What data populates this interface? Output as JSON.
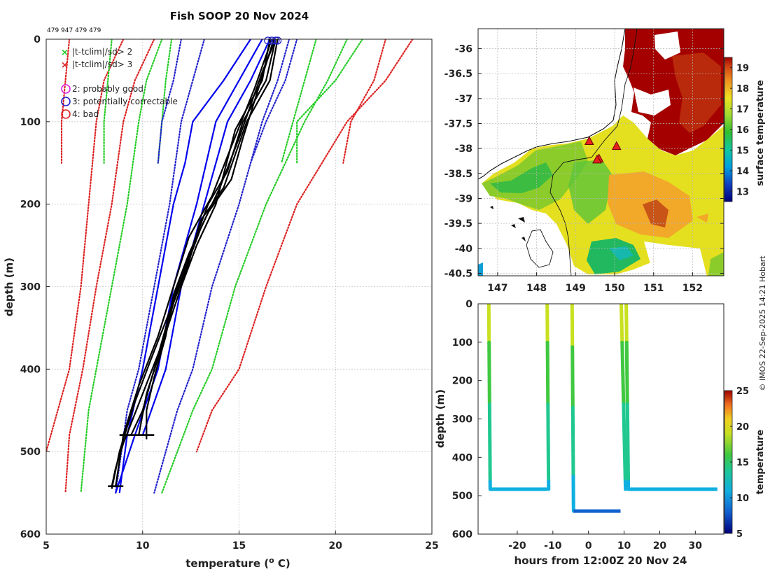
{
  "chart_data": [
    {
      "type": "line",
      "title": "Fish SOOP 20 Nov 2024",
      "subtitle": "479 947 479 479",
      "xlabel": "temperature (o C)",
      "xlabel_main": "temperature (",
      "xlabel_sup": "o",
      "xlabel_end": " C)",
      "ylabel": "depth (m)",
      "xlim": [
        5,
        25
      ],
      "ylim": [
        600,
        0
      ],
      "xticks": [
        5,
        10,
        15,
        20,
        25
      ],
      "yticks": [
        0,
        100,
        200,
        300,
        400,
        500,
        600
      ],
      "grid": true,
      "legend": [
        {
          "marker": "x",
          "color": "#22cc22",
          "label": "|t-tclim|/sd> 2"
        },
        {
          "marker": "x",
          "color": "#dd2222",
          "label": "|t-tclim|/sd> 3"
        },
        {
          "marker": "o",
          "color": "#dd22dd",
          "label": "2: probably good"
        },
        {
          "marker": "o",
          "color": "#2222cc",
          "label": "3: potentially correctable"
        },
        {
          "marker": "o",
          "color": "#dd2222",
          "label": "4: bad"
        }
      ],
      "climatology_series": [
        {
          "name": "clim -3sd a",
          "color": "#dd2222",
          "style": "dotted",
          "points": [
            [
              6.2,
              0
            ],
            [
              6.0,
              50
            ],
            [
              5.8,
              100
            ],
            [
              5.8,
              150
            ]
          ]
        },
        {
          "name": "clim -3sd b",
          "color": "#dd2222",
          "style": "dotted",
          "points": [
            [
              9.0,
              0
            ],
            [
              8.0,
              50
            ],
            [
              7.6,
              100
            ],
            [
              7.2,
              200
            ],
            [
              6.8,
              300
            ],
            [
              6.2,
              400
            ],
            [
              5.6,
              450
            ],
            [
              5.0,
              500
            ]
          ]
        },
        {
          "name": "clim -3sd c",
          "color": "#dd2222",
          "style": "dotted",
          "points": [
            [
              10.6,
              0
            ],
            [
              9.6,
              50
            ],
            [
              9.0,
              100
            ],
            [
              8.4,
              200
            ],
            [
              7.6,
              300
            ],
            [
              6.9,
              400
            ],
            [
              6.2,
              480
            ],
            [
              6.0,
              550
            ]
          ]
        },
        {
          "name": "clim -2sd a",
          "color": "#22cc22",
          "style": "dotted",
          "points": [
            [
              8.4,
              0
            ],
            [
              8.2,
              50
            ],
            [
              8.0,
              100
            ],
            [
              8.0,
              150
            ]
          ]
        },
        {
          "name": "clim -2sd b",
          "color": "#22cc22",
          "style": "dotted",
          "points": [
            [
              11.0,
              0
            ],
            [
              10.2,
              50
            ],
            [
              9.8,
              100
            ],
            [
              9.2,
              200
            ],
            [
              8.4,
              300
            ],
            [
              7.6,
              400
            ],
            [
              7.2,
              450
            ],
            [
              6.8,
              550
            ]
          ]
        },
        {
          "name": "clim -2sd c",
          "color": "#22cc22",
          "style": "dotted",
          "points": [
            [
              11.5,
              0
            ],
            [
              11.2,
              50
            ],
            [
              11.0,
              100
            ],
            [
              10.8,
              150
            ]
          ]
        },
        {
          "name": "clim -1sd a",
          "color": "#2222cc",
          "style": "dotted",
          "points": [
            [
              12.0,
              0
            ],
            [
              11.6,
              50
            ],
            [
              11.0,
              100
            ],
            [
              10.8,
              150
            ]
          ]
        },
        {
          "name": "clim -1sd b",
          "color": "#2222cc",
          "style": "dotted",
          "points": [
            [
              13.2,
              0
            ],
            [
              12.6,
              50
            ],
            [
              12.0,
              100
            ],
            [
              11.4,
              200
            ],
            [
              10.6,
              300
            ],
            [
              9.8,
              400
            ],
            [
              9.2,
              450
            ],
            [
              8.6,
              550
            ]
          ]
        },
        {
          "name": "clim +1sd a",
          "color": "#2222cc",
          "style": "dotted",
          "points": [
            [
              18.0,
              0
            ],
            [
              17.4,
              50
            ],
            [
              16.4,
              100
            ],
            [
              15.6,
              150
            ]
          ]
        },
        {
          "name": "clim +1sd b",
          "color": "#2222cc",
          "style": "dotted",
          "points": [
            [
              17.6,
              0
            ],
            [
              17.0,
              50
            ],
            [
              16.2,
              100
            ],
            [
              15.0,
              200
            ],
            [
              13.6,
              300
            ],
            [
              12.6,
              400
            ],
            [
              11.8,
              450
            ],
            [
              10.6,
              550
            ]
          ]
        },
        {
          "name": "clim +2sd a",
          "color": "#22cc22",
          "style": "dotted",
          "points": [
            [
              19.0,
              0
            ],
            [
              18.4,
              50
            ],
            [
              17.8,
              100
            ],
            [
              17.2,
              150
            ]
          ]
        },
        {
          "name": "clim +2sd b",
          "color": "#22cc22",
          "style": "dotted",
          "points": [
            [
              20.6,
              0
            ],
            [
              19.6,
              50
            ],
            [
              18.4,
              100
            ],
            [
              16.4,
              200
            ],
            [
              14.8,
              300
            ],
            [
              13.6,
              400
            ],
            [
              12.6,
              450
            ],
            [
              11.0,
              550
            ]
          ]
        },
        {
          "name": "clim +2sd c",
          "color": "#22cc22",
          "style": "dotted",
          "points": [
            [
              21.4,
              0
            ],
            [
              20.0,
              50
            ],
            [
              18.0,
              100
            ],
            [
              18.0,
              150
            ]
          ]
        },
        {
          "name": "clim +3sd a",
          "color": "#dd2222",
          "style": "dotted",
          "points": [
            [
              22.6,
              0
            ],
            [
              22.0,
              50
            ],
            [
              20.8,
              100
            ],
            [
              20.4,
              150
            ]
          ]
        },
        {
          "name": "clim +3sd b",
          "color": "#dd2222",
          "style": "dotted",
          "points": [
            [
              24.0,
              0
            ],
            [
              22.6,
              50
            ],
            [
              20.6,
              100
            ],
            [
              18.0,
              200
            ],
            [
              16.4,
              300
            ],
            [
              15.0,
              400
            ],
            [
              13.6,
              450
            ],
            [
              12.8,
              500
            ]
          ]
        }
      ],
      "reference_series": [
        {
          "name": "ref 1",
          "color": "#0000ee",
          "points": [
            [
              15.6,
              0
            ],
            [
              14.2,
              50
            ],
            [
              12.6,
              100
            ],
            [
              12.2,
              150
            ],
            [
              11.6,
              200
            ],
            [
              10.8,
              300
            ],
            [
              10.0,
              400
            ],
            [
              9.2,
              480
            ],
            [
              8.8,
              550
            ]
          ]
        },
        {
          "name": "ref 2",
          "color": "#0000ee",
          "points": [
            [
              16.2,
              0
            ],
            [
              15.0,
              50
            ],
            [
              13.8,
              100
            ],
            [
              12.8,
              200
            ],
            [
              11.6,
              300
            ],
            [
              10.8,
              400
            ],
            [
              9.6,
              480
            ],
            [
              8.6,
              550
            ]
          ]
        },
        {
          "name": "ref 3",
          "color": "#0000ee",
          "points": [
            [
              16.6,
              0
            ],
            [
              15.6,
              50
            ],
            [
              14.4,
              100
            ],
            [
              13.2,
              200
            ],
            [
              12.0,
              300
            ],
            [
              11.2,
              400
            ],
            [
              10.0,
              480
            ]
          ]
        }
      ],
      "profile_series": [
        {
          "name": "profile 1",
          "color": "#000000",
          "points": [
            [
              16.9,
              0
            ],
            [
              16.4,
              50
            ],
            [
              15.2,
              100
            ],
            [
              14.4,
              160
            ],
            [
              13.4,
              200
            ],
            [
              12.6,
              250
            ],
            [
              11.8,
              300
            ],
            [
              11.2,
              350
            ],
            [
              10.6,
              400
            ],
            [
              10.0,
              450
            ],
            [
              9.4,
              480
            ]
          ]
        },
        {
          "name": "profile 2",
          "color": "#000000",
          "points": [
            [
              17.0,
              0
            ],
            [
              16.6,
              50
            ],
            [
              15.4,
              100
            ],
            [
              14.2,
              180
            ],
            [
              13.0,
              220
            ],
            [
              12.4,
              270
            ],
            [
              11.6,
              320
            ],
            [
              10.9,
              380
            ],
            [
              10.2,
              430
            ],
            [
              9.8,
              480
            ]
          ]
        },
        {
          "name": "profile 3",
          "color": "#000000",
          "points": [
            [
              16.8,
              0
            ],
            [
              16.0,
              60
            ],
            [
              15.2,
              120
            ],
            [
              14.6,
              170
            ],
            [
              13.4,
              210
            ],
            [
              12.4,
              260
            ],
            [
              11.6,
              310
            ],
            [
              11.2,
              360
            ],
            [
              10.6,
              410
            ],
            [
              10.2,
              450
            ],
            [
              10.2,
              485
            ]
          ]
        },
        {
          "name": "profile 4",
          "color": "#000000",
          "points": [
            [
              16.6,
              0
            ],
            [
              16.2,
              50
            ],
            [
              14.8,
              110
            ],
            [
              13.8,
              200
            ],
            [
              12.8,
              250
            ],
            [
              12.0,
              300
            ],
            [
              11.0,
              370
            ],
            [
              10.0,
              430
            ],
            [
              9.0,
              490
            ],
            [
              8.6,
              520
            ],
            [
              8.4,
              542
            ]
          ]
        },
        {
          "name": "profile 5",
          "color": "#000000",
          "points": [
            [
              16.7,
              0
            ],
            [
              15.8,
              60
            ],
            [
              14.6,
              130
            ],
            [
              13.6,
              190
            ],
            [
              12.4,
              240
            ],
            [
              11.6,
              300
            ],
            [
              10.8,
              360
            ],
            [
              9.8,
              420
            ],
            [
              9.0,
              480
            ],
            [
              8.6,
              542
            ]
          ]
        },
        {
          "name": "profile 6",
          "color": "#000000",
          "points": [
            [
              16.9,
              0
            ],
            [
              16.2,
              40
            ],
            [
              15.0,
              120
            ],
            [
              14.0,
              180
            ],
            [
              13.0,
              230
            ],
            [
              12.2,
              280
            ],
            [
              11.4,
              330
            ],
            [
              10.4,
              390
            ],
            [
              9.6,
              440
            ],
            [
              8.8,
              500
            ],
            [
              8.4,
              545
            ]
          ]
        }
      ],
      "profile_bottoms": [
        {
          "depth": 480,
          "xmin": 8.8,
          "xmax": 10.6
        },
        {
          "depth": 542,
          "xmin": 8.2,
          "xmax": 9.0
        }
      ],
      "surface_flags": [
        16.5,
        16.7,
        16.9,
        17.0
      ]
    },
    {
      "type": "heatmap",
      "xlim": [
        146.5,
        152.8
      ],
      "ylim": [
        -40.55,
        -35.6
      ],
      "xticks": [
        147,
        148,
        149,
        150,
        151,
        152
      ],
      "yticks": [
        -36,
        -36.5,
        -37,
        -37.5,
        -38,
        -38.5,
        -39,
        -39.5,
        -40,
        -40.5
      ],
      "colorbar_label": "surface temperature",
      "colorbar_ticks": [
        13,
        14,
        15,
        16,
        17,
        18,
        19
      ],
      "colorbar_range": [
        12.5,
        19.5
      ],
      "stations": [
        [
          149.35,
          -37.85
        ],
        [
          150.05,
          -37.95
        ],
        [
          149.6,
          -38.2
        ],
        [
          149.55,
          -38.22
        ]
      ]
    },
    {
      "type": "scatter",
      "xlabel": "hours from 12:00Z 20 Nov 24",
      "ylabel": "depth (m)",
      "xlim": [
        -31,
        38
      ],
      "ylim": [
        600,
        0
      ],
      "xticks": [
        -20,
        -10,
        0,
        10,
        20,
        30
      ],
      "xtick_labels": [
        "-20",
        "-10",
        "0",
        "10",
        "20",
        "30"
      ],
      "yticks": [
        0,
        100,
        200,
        300,
        400,
        500,
        600
      ],
      "colorbar_label": "temperature",
      "colorbar_ticks": [
        5,
        10,
        15,
        20,
        25
      ],
      "colorbar_range": [
        5,
        25
      ],
      "casts": [
        {
          "x": [
            -28,
            -27.6
          ],
          "bottom": 483,
          "bottom_x": [
            -27.6,
            -11.6
          ],
          "x_up": -11.6,
          "bottom_temp": 10.5
        },
        {
          "x": [
            -11.6,
            -11.2
          ],
          "up": true
        },
        {
          "x": [
            -4.6,
            -4.2
          ],
          "bottom": 540,
          "bottom_x": [
            -4.2,
            9.0
          ],
          "x_up": 9.2,
          "bottom_temp": 9.8
        },
        {
          "x": [
            9.2,
            10.4
          ],
          "up": true
        },
        {
          "x": [
            10.6,
            11.2
          ],
          "bottom": 483,
          "bottom_x": [
            11.2,
            36.2
          ],
          "x_up": 36.6,
          "bottom_temp": 10.4
        }
      ]
    }
  ],
  "credit": "© IMOS 22-Sep-2025 14:21 Hobart"
}
